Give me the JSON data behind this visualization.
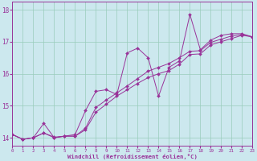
{
  "title": "",
  "xlabel": "Windchill (Refroidissement éolien,°C)",
  "background_color": "#cce8ee",
  "line_color": "#993399",
  "grid_color": "#99ccbb",
  "x_data": [
    0,
    1,
    2,
    3,
    4,
    5,
    6,
    7,
    8,
    9,
    10,
    11,
    12,
    13,
    14,
    15,
    16,
    17,
    18,
    19,
    20,
    21,
    22,
    23
  ],
  "line1_y": [
    14.1,
    13.95,
    14.0,
    14.45,
    14.0,
    14.05,
    14.1,
    14.85,
    15.45,
    15.5,
    15.35,
    16.65,
    16.8,
    16.5,
    15.3,
    16.2,
    16.4,
    17.85,
    16.75,
    17.05,
    17.2,
    17.25,
    17.25,
    17.15
  ],
  "line2_y": [
    14.1,
    13.95,
    14.0,
    14.15,
    14.0,
    14.05,
    14.05,
    14.25,
    14.8,
    15.05,
    15.3,
    15.5,
    15.7,
    15.88,
    16.0,
    16.1,
    16.3,
    16.6,
    16.62,
    16.9,
    17.0,
    17.1,
    17.2,
    17.15
  ],
  "line3_y": [
    14.1,
    13.95,
    14.0,
    14.15,
    14.02,
    14.05,
    14.05,
    14.3,
    14.95,
    15.18,
    15.4,
    15.62,
    15.85,
    16.08,
    16.2,
    16.32,
    16.5,
    16.7,
    16.72,
    16.98,
    17.08,
    17.18,
    17.22,
    17.15
  ],
  "ylim": [
    13.75,
    18.25
  ],
  "xlim": [
    0,
    23
  ],
  "yticks": [
    14,
    15,
    16,
    17,
    18
  ],
  "xticks": [
    0,
    1,
    2,
    3,
    4,
    5,
    6,
    7,
    8,
    9,
    10,
    11,
    12,
    13,
    14,
    15,
    16,
    17,
    18,
    19,
    20,
    21,
    22,
    23
  ]
}
